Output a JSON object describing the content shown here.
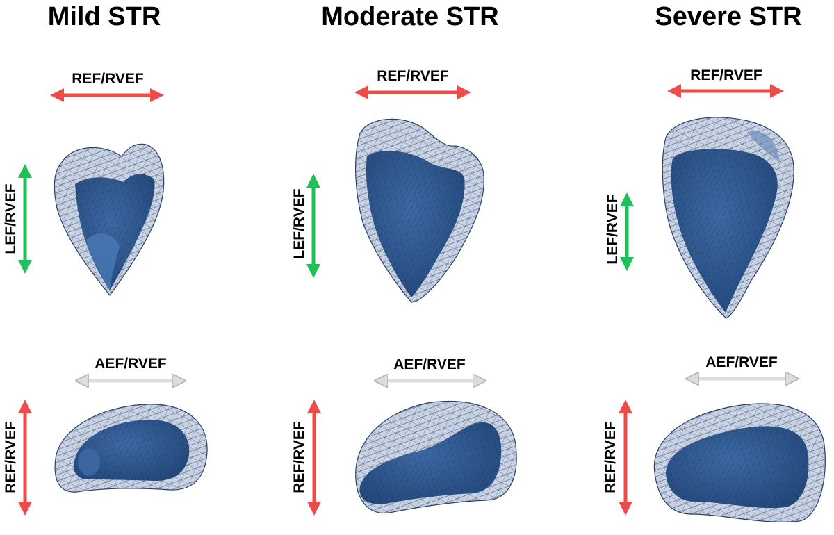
{
  "panels": [
    {
      "title": "Mild STR",
      "top_horizontal_label": "REF/RVEF",
      "top_vertical_label": "LEF/RVEF",
      "bottom_horizontal_label": "AEF/RVEF",
      "bottom_vertical_label": "REF/RVEF"
    },
    {
      "title": "Moderate STR",
      "top_horizontal_label": "REF/RVEF",
      "top_vertical_label": "LEF/RVEF",
      "bottom_horizontal_label": "AEF/RVEF",
      "bottom_vertical_label": "REF/RVEF"
    },
    {
      "title": "Severe STR",
      "top_horizontal_label": "REF/RVEF",
      "top_vertical_label": "LEF/RVEF",
      "bottom_horizontal_label": "AEF/RVEF",
      "bottom_vertical_label": "REF/RVEF"
    }
  ],
  "colors": {
    "ref_arrow": "#ee4b4b",
    "lef_arrow": "#1fbf5a",
    "aef_arrow": "#dcdcdc",
    "mesh_outer": "#c9d3e3",
    "mesh_line": "#2b3f66",
    "inner_surface": "#2f5b93"
  }
}
